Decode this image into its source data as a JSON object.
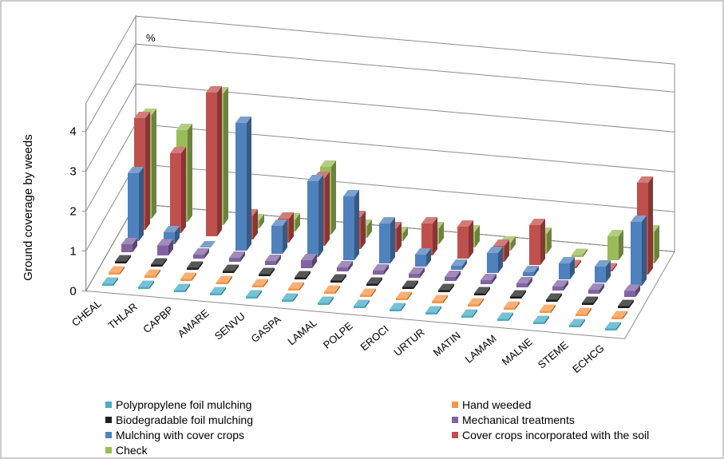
{
  "chart_data": {
    "type": "bar3d",
    "ylabel": "Ground coverage by weeds",
    "unit_label": "%",
    "categories": [
      "CHEAL",
      "THLAR",
      "CAPBP",
      "AMARE",
      "SENVU",
      "GASPA",
      "LAMAL",
      "POLPE",
      "EROCI",
      "URTUR",
      "MATIN",
      "LAMAM",
      "MALNE",
      "STEME",
      "ECHCG"
    ],
    "ylim": [
      0,
      4.7
    ],
    "yticks": [
      0,
      1,
      2,
      3,
      4
    ],
    "grid": true,
    "series": [
      {
        "name": "Polypropylene foil mulching",
        "color": "#4bacc6",
        "values": [
          0.05,
          0.05,
          0.05,
          0.05,
          0.05,
          0.05,
          0.05,
          0.05,
          0.05,
          0.05,
          0.05,
          0.05,
          0.05,
          0.05,
          0.05
        ]
      },
      {
        "name": "Hand weeded",
        "color": "#f79646",
        "values": [
          0.05,
          0.05,
          0.05,
          0.05,
          0.05,
          0.05,
          0.05,
          0.05,
          0.05,
          0.05,
          0.05,
          0.05,
          0.05,
          0.05,
          0.05
        ]
      },
      {
        "name": "Biodegradable foil mulching",
        "color": "#1f1f1f",
        "values": [
          0.05,
          0.05,
          0.05,
          0.05,
          0.05,
          0.05,
          0.05,
          0.05,
          0.05,
          0.05,
          0.05,
          0.05,
          0.05,
          0.05,
          0.05
        ]
      },
      {
        "name": "Mechanical treatments",
        "color": "#8064a2",
        "values": [
          0.2,
          0.25,
          0.1,
          0.1,
          0.1,
          0.2,
          0.1,
          0.1,
          0.1,
          0.1,
          0.1,
          0.1,
          0.1,
          0.1,
          0.15
        ]
      },
      {
        "name": "Mulching with cover crops",
        "color": "#4f81bd",
        "values": [
          1.7,
          0.3,
          0,
          3.2,
          0.7,
          1.9,
          1.6,
          1.0,
          0.3,
          0.1,
          0.5,
          0.1,
          0.4,
          0.4,
          1.6
        ]
      },
      {
        "name": "Cover crops incorporated with the soil",
        "color": "#c0504d",
        "values": [
          2.8,
          2.0,
          3.6,
          0.6,
          0.6,
          1.7,
          0.8,
          0.6,
          0.8,
          0.8,
          0.4,
          1.0,
          0.05,
          0.05,
          2.3
        ]
      },
      {
        "name": "Check",
        "color": "#9bbb59",
        "values": [
          2.6,
          2.3,
          3.3,
          0.2,
          0.3,
          1.7,
          0.3,
          0.2,
          0.4,
          0.4,
          0.2,
          0.5,
          0.05,
          0.6,
          0.8
        ]
      }
    ]
  }
}
